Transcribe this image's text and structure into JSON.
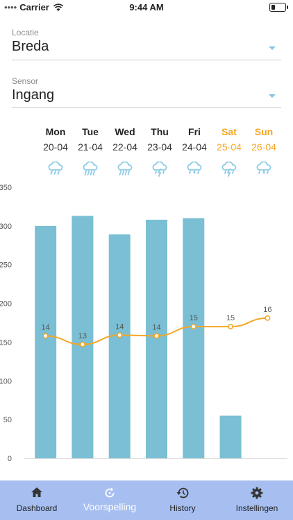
{
  "status_bar": {
    "carrier": "Carrier",
    "time": "9:44 AM"
  },
  "location": {
    "label": "Locatie",
    "value": "Breda"
  },
  "sensor": {
    "label": "Sensor",
    "value": "Ingang"
  },
  "days": [
    {
      "name": "Mon",
      "date": "20-04",
      "weekend": false,
      "icon": "rain-icon"
    },
    {
      "name": "Tue",
      "date": "21-04",
      "weekend": false,
      "icon": "heavy-rain-icon"
    },
    {
      "name": "Wed",
      "date": "22-04",
      "weekend": false,
      "icon": "heavy-rain-icon"
    },
    {
      "name": "Thu",
      "date": "23-04",
      "weekend": false,
      "icon": "thunderstorm-icon"
    },
    {
      "name": "Fri",
      "date": "24-04",
      "weekend": false,
      "icon": "showers-icon"
    },
    {
      "name": "Sat",
      "date": "25-04",
      "weekend": true,
      "icon": "thunderstorm-icon"
    },
    {
      "name": "Sun",
      "date": "26-04",
      "weekend": true,
      "icon": "showers-icon"
    }
  ],
  "chart_data": {
    "type": "bar",
    "categories": [
      "Mon",
      "Tue",
      "Wed",
      "Thu",
      "Fri",
      "Sat",
      "Sun"
    ],
    "series": [
      {
        "type": "bar",
        "values": [
          300,
          313,
          289,
          308,
          310,
          55,
          0
        ]
      },
      {
        "type": "line",
        "values": [
          158,
          147,
          159,
          158,
          170,
          170,
          181
        ],
        "labels": [
          "14",
          "13",
          "14",
          "14",
          "15",
          "15",
          "16"
        ]
      }
    ],
    "ylim": [
      0,
      350
    ],
    "yticks": [
      "0",
      "50",
      "100",
      "150",
      "200",
      "250",
      "300",
      "350"
    ],
    "colors": {
      "bar": "#7abfd4",
      "line": "#f5a623"
    }
  },
  "nav": {
    "items": [
      {
        "label": "Dashboard",
        "icon": "home-icon",
        "active": false
      },
      {
        "label": "Voorspelling",
        "icon": "refresh-icon",
        "active": true
      },
      {
        "label": "History",
        "icon": "history-icon",
        "active": false
      },
      {
        "label": "Instellingen",
        "icon": "gear-icon",
        "active": false
      }
    ]
  }
}
